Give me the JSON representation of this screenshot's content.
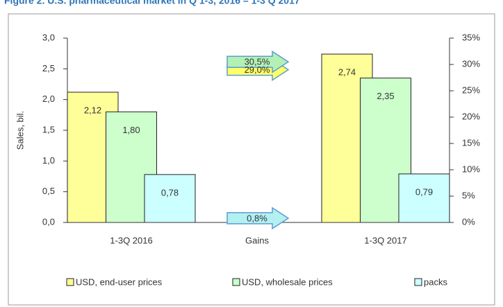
{
  "chart_data": {
    "type": "bar",
    "title": "Figure 2. U.S. pharmaceutical market in Q 1-3, 2016 – 1-3 Q 2017",
    "y_label": "Sales, bil.",
    "categories": [
      "1-3Q 2016",
      "1-3Q 2017"
    ],
    "gains_label": "Gains",
    "series": [
      {
        "name": "USD, end-user prices",
        "color": "#ffff99",
        "values": [
          2.12,
          2.74
        ],
        "value_labels": [
          "2,12",
          "2,74"
        ],
        "gain": 29.0,
        "gain_label": "29,0%",
        "gain_color": "#ffff66"
      },
      {
        "name": "USD, wholesale prices",
        "color": "#ccffcc",
        "values": [
          1.8,
          2.35
        ],
        "value_labels": [
          "1,80",
          "2,35"
        ],
        "gain": 30.5,
        "gain_label": "30,5%",
        "gain_color": "#b3f0b3"
      },
      {
        "name": "packs",
        "color": "#ccffff",
        "values": [
          0.78,
          0.79
        ],
        "value_labels": [
          "0,78",
          "0,79"
        ],
        "gain": 0.8,
        "gain_label": "0,8%",
        "gain_color": "#b3f0f0"
      }
    ],
    "ylim": [
      0,
      3
    ],
    "yticks": [
      {
        "value": 0,
        "label": "0,0"
      },
      {
        "value": 0.5,
        "label": "0,5"
      },
      {
        "value": 1,
        "label": "1,0"
      },
      {
        "value": 1.5,
        "label": "1,5"
      },
      {
        "value": 2,
        "label": "2,0"
      },
      {
        "value": 2.5,
        "label": "2,5"
      },
      {
        "value": 3,
        "label": "3,0"
      }
    ],
    "y2lim": [
      0,
      35
    ],
    "y2ticks": [
      {
        "value": 0,
        "label": "0%"
      },
      {
        "value": 5,
        "label": "5%"
      },
      {
        "value": 10,
        "label": "10%"
      },
      {
        "value": 15,
        "label": "15%"
      },
      {
        "value": 20,
        "label": "20%"
      },
      {
        "value": 25,
        "label": "25%"
      },
      {
        "value": 30,
        "label": "30%"
      },
      {
        "value": 35,
        "label": "35%"
      }
    ],
    "legend": "bottom"
  }
}
